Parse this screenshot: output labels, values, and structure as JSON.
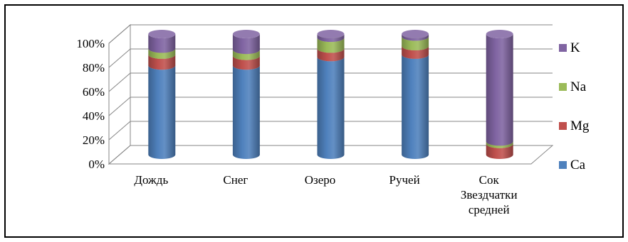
{
  "chart_data": {
    "type": "bar",
    "stacked": "percent",
    "style": "3d-cylinder",
    "categories": [
      [
        "Дождь"
      ],
      [
        "Снег"
      ],
      [
        "Озеро"
      ],
      [
        "Ручей"
      ],
      [
        "Сок",
        "Звездчатки",
        "средней"
      ]
    ],
    "series": [
      {
        "name": "Ca",
        "color": "#4F81BD",
        "values": [
          74,
          74,
          81,
          83,
          0
        ]
      },
      {
        "name": "Mg",
        "color": "#C0504D",
        "values": [
          9,
          8,
          7,
          7,
          9
        ]
      },
      {
        "name": "Na",
        "color": "#9BBB59",
        "values": [
          5,
          5,
          9,
          8,
          2
        ]
      },
      {
        "name": "K",
        "color": "#8064A2",
        "values": [
          12,
          13,
          3,
          2,
          89
        ]
      }
    ],
    "y_ticks": [
      "0%",
      "20%",
      "40%",
      "60%",
      "80%",
      "100%"
    ],
    "ylim": [
      0,
      100
    ],
    "grid": true,
    "legend": {
      "position": "right",
      "order": [
        "K",
        "Na",
        "Mg",
        "Ca"
      ]
    }
  }
}
